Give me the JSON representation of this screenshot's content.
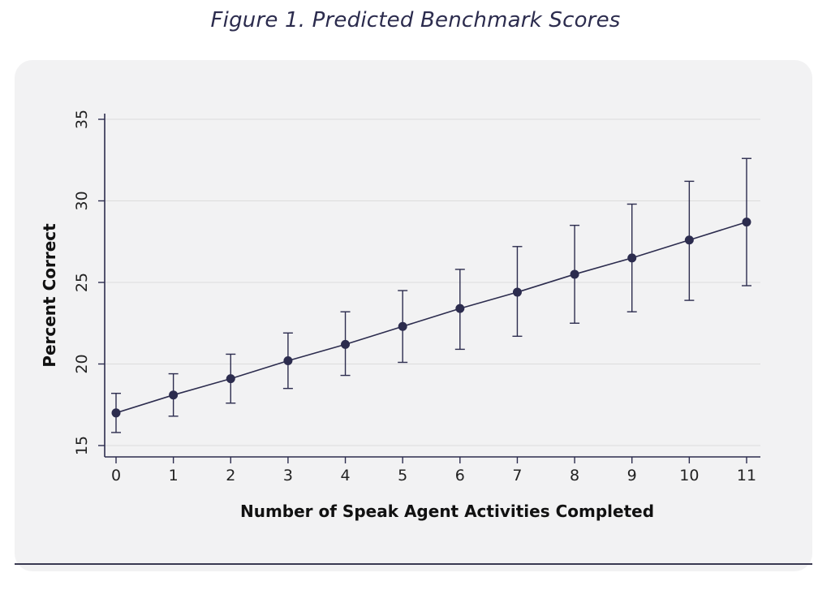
{
  "figure": {
    "title": "Figure 1. Predicted Benchmark Scores"
  },
  "chart_data": {
    "type": "line",
    "title": "Figure 1. Predicted Benchmark Scores",
    "xlabel": "Number of Speak Agent Activities Completed",
    "ylabel": "Percent Correct",
    "x": [
      0,
      1,
      2,
      3,
      4,
      5,
      6,
      7,
      8,
      9,
      10,
      11
    ],
    "series": [
      {
        "values": [
          17.0,
          18.1,
          19.1,
          20.2,
          21.2,
          22.3,
          23.4,
          24.4,
          25.5,
          26.5,
          27.6,
          28.7
        ],
        "lower": [
          15.8,
          16.8,
          17.6,
          18.5,
          19.3,
          20.1,
          20.9,
          21.7,
          22.5,
          23.2,
          23.9,
          24.8
        ],
        "upper": [
          18.2,
          19.4,
          20.6,
          21.9,
          23.2,
          24.5,
          25.8,
          27.2,
          28.5,
          29.8,
          31.2,
          32.6
        ]
      }
    ],
    "xticks": [
      "0",
      "1",
      "2",
      "3",
      "4",
      "5",
      "6",
      "7",
      "8",
      "9",
      "10",
      "11"
    ],
    "yticks": [
      "15",
      "20",
      "25",
      "30",
      "35"
    ],
    "xlim": [
      0,
      11
    ],
    "ylim": [
      15,
      35
    ],
    "grid": "horizontal",
    "colors": {
      "series": "#2c2c4e",
      "grid": "#dcdcdc",
      "axis": "#2c2c4e",
      "panel": "#f2f2f3"
    }
  }
}
